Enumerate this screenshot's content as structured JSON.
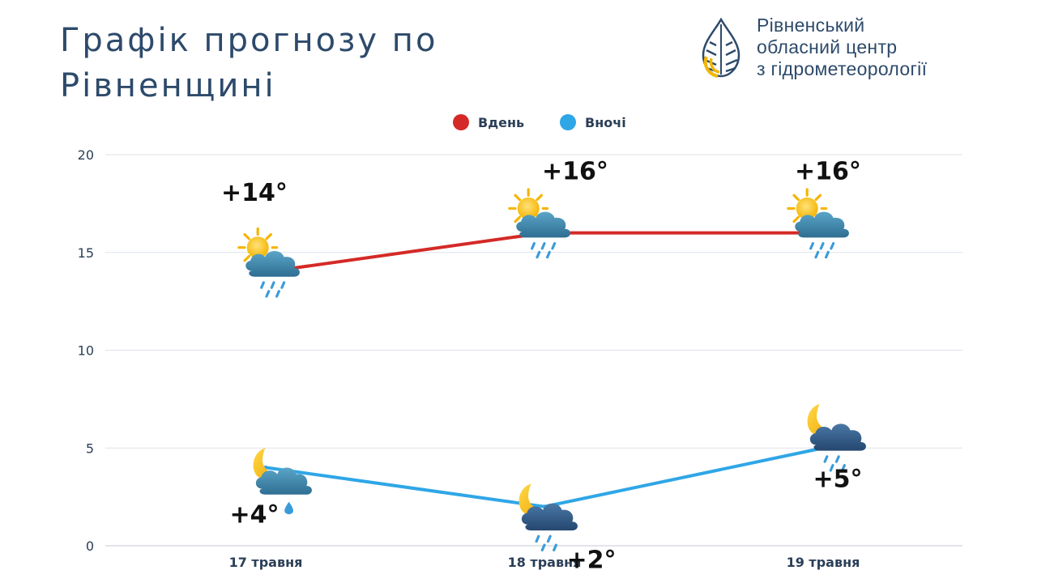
{
  "page": {
    "title_line1": "Графік прогнозу по",
    "title_line2": "Рівненщині"
  },
  "org": {
    "name_line1": "Рівненський",
    "name_line2": "обласний центр",
    "name_line3": "з гідрометеорології",
    "logo": "water-drop-logo-icon",
    "colors": {
      "primary": "#2d4a6b",
      "accent": "#f2b705"
    }
  },
  "chart_data": {
    "type": "line",
    "categories": [
      "17 травня",
      "18 травня",
      "19 травня"
    ],
    "ylim": [
      0,
      20
    ],
    "yticks": [
      0,
      5,
      10,
      15,
      20
    ],
    "grid": true,
    "legend_position": "top-center",
    "series": [
      {
        "name": "Вдень",
        "color": "#d42a27",
        "values": [
          14,
          16,
          16
        ],
        "labels": [
          "+14°",
          "+16°",
          "+16°"
        ],
        "icons": [
          "sun-cloud-rain-icon",
          "sun-cloud-rain-icon",
          "sun-cloud-rain-icon"
        ]
      },
      {
        "name": "Вночі",
        "color": "#2fa6e6",
        "values": [
          4,
          2,
          5
        ],
        "labels": [
          "+4°",
          "+2°",
          "+5°"
        ],
        "icons": [
          "moon-cloud-drop-icon",
          "moon-cloud-rain-icon",
          "moon-cloud-rain-icon"
        ]
      }
    ]
  }
}
